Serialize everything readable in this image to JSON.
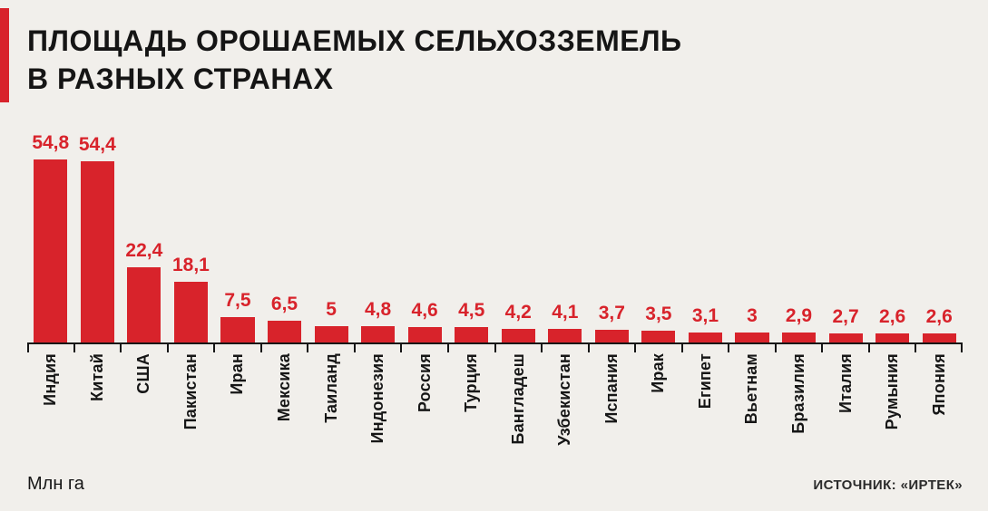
{
  "header": {
    "title_line1": "ПЛОЩАДЬ ОРОШАЕМЫХ СЕЛЬХОЗЗЕМЕЛЬ",
    "title_line2": "В РАЗНЫХ СТРАНАХ"
  },
  "footer": {
    "unit_label": "Млн га",
    "source_label": "ИСТОЧНИК: «ИРТЕК»"
  },
  "colors": {
    "background": "#f1efeb",
    "bar": "#d8232b",
    "value_label": "#d8232b",
    "axis": "#161616",
    "accent_stripe": "#d8232b"
  },
  "chart_data": {
    "type": "bar",
    "title": "ПЛОЩАДЬ ОРОШАЕМЫХ СЕЛЬХОЗЗЕМЕЛЬ В РАЗНЫХ СТРАНАХ",
    "categories": [
      "Индия",
      "Китай",
      "США",
      "Пакистан",
      "Иран",
      "Мексика",
      "Таиланд",
      "Индонезия",
      "Россия",
      "Турция",
      "Бангладеш",
      "Узбекистан",
      "Испания",
      "Ирак",
      "Египет",
      "Вьетнам",
      "Бразилия",
      "Италия",
      "Румыния",
      "Япония"
    ],
    "values": [
      54.8,
      54.4,
      22.4,
      18.1,
      7.5,
      6.5,
      5,
      4.8,
      4.6,
      4.5,
      4.2,
      4.1,
      3.7,
      3.5,
      3.1,
      3,
      2.9,
      2.7,
      2.6,
      2.6
    ],
    "value_labels": [
      "54,8",
      "54,4",
      "22,4",
      "18,1",
      "7,5",
      "6,5",
      "5",
      "4,8",
      "4,6",
      "4,5",
      "4,2",
      "4,1",
      "3,7",
      "3,5",
      "3,1",
      "3",
      "2,9",
      "2,7",
      "2,6",
      "2,6"
    ],
    "xlabel": "",
    "ylabel": "Млн га",
    "ylim": [
      0,
      56
    ],
    "grid": false,
    "legend": "none",
    "value_labels_position": "above-bars",
    "category_labels_rotation": -90
  }
}
